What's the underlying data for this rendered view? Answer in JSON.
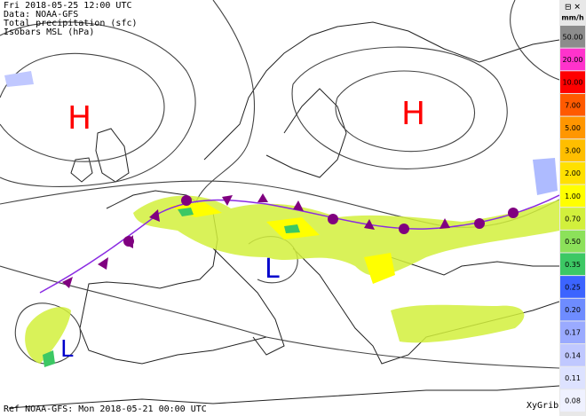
{
  "header": {
    "lines": [
      "Fri 2018-05-25 12:00 UTC",
      "Data: NOAA-GFS",
      "Total precipitation (sfc)",
      "Isobars MSL (hPa)"
    ]
  },
  "pressure_labels": [
    {
      "label": "H",
      "color": "#ff0000"
    },
    {
      "label": "H",
      "color": "#ff0000"
    },
    {
      "label": "L",
      "color": "#0000cc"
    },
    {
      "label": "L",
      "color": "#0000cc"
    }
  ],
  "footer": {
    "reference": "Ref NOAA-GFS: Mon 2018-05-21 00:00 UTC",
    "app": "XyGrib"
  },
  "legend": {
    "unit": "mm/h",
    "items": [
      {
        "label": "50.00",
        "color": "#8c8c8c"
      },
      {
        "label": "20.00",
        "color": "#ff33cc"
      },
      {
        "label": "10.00",
        "color": "#ff0000"
      },
      {
        "label": "7.00",
        "color": "#ff5a00"
      },
      {
        "label": "5.00",
        "color": "#ff9600"
      },
      {
        "label": "3.00",
        "color": "#ffbe00"
      },
      {
        "label": "2.00",
        "color": "#ffe000"
      },
      {
        "label": "1.00",
        "color": "#ffff00"
      },
      {
        "label": "0.70",
        "color": "#d2f03c"
      },
      {
        "label": "0.50",
        "color": "#8ce15a"
      },
      {
        "label": "0.35",
        "color": "#3cc864"
      },
      {
        "label": "0.25",
        "color": "#3c64ff"
      },
      {
        "label": "0.20",
        "color": "#6e8cff"
      },
      {
        "label": "0.17",
        "color": "#9aaaff"
      },
      {
        "label": "0.14",
        "color": "#c0c8ff"
      },
      {
        "label": "0.11",
        "color": "#dde2ff"
      },
      {
        "label": "0.08",
        "color": "#eff1ff"
      }
    ]
  }
}
